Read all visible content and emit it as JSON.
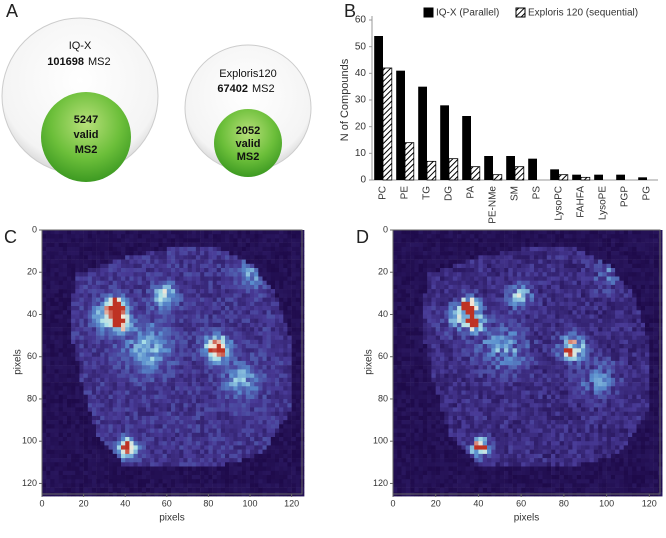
{
  "panel_labels": [
    "A",
    "B",
    "C",
    "D"
  ],
  "panel_a": {
    "circles": [
      {
        "instrument": "IQ-X",
        "total": 101698,
        "total_unit": "MS2",
        "valid": 5247,
        "valid_label": "valid",
        "valid_unit": "MS2"
      },
      {
        "instrument": "Exploris120",
        "total": 67402,
        "total_unit": "MS2",
        "valid": 2052,
        "valid_label": "valid",
        "valid_unit": "MS2"
      }
    ]
  },
  "chart_data": [
    {
      "type": "bar",
      "ylabel": "N of Compounds",
      "categories": [
        "PC",
        "PE",
        "TG",
        "DG",
        "PA",
        "PE-NMe",
        "SM",
        "PS",
        "LysoPC",
        "FAHFA",
        "LysoPE",
        "PGP",
        "PG"
      ],
      "series": [
        {
          "name": "IQ-X (Parallel)",
          "color": "#000000",
          "values": [
            54,
            41,
            35,
            28,
            24,
            9,
            9,
            8,
            4,
            2,
            2,
            2,
            1
          ]
        },
        {
          "name": "Exploris 120 (sequential)",
          "color": "#000000",
          "hatch": true,
          "values": [
            42,
            14,
            7,
            8,
            5,
            2,
            5,
            0,
            2,
            1,
            0,
            0,
            0
          ]
        }
      ],
      "ylim": [
        0,
        60
      ],
      "yticks": [
        0,
        10,
        20,
        30,
        40,
        50,
        60
      ]
    },
    {
      "type": "heatmap",
      "xlabel": "pixels",
      "ylabel": "pixels",
      "xlim": [
        0,
        125
      ],
      "ylim": [
        125,
        0
      ],
      "xticks": [
        0,
        20,
        40,
        60,
        80,
        100,
        120
      ],
      "yticks": [
        0,
        20,
        40,
        60,
        80,
        100,
        120
      ]
    },
    {
      "type": "heatmap",
      "xlabel": "pixels",
      "ylabel": "pixels",
      "xlim": [
        0,
        125
      ],
      "ylim": [
        125,
        0
      ],
      "xticks": [
        0,
        20,
        40,
        60,
        80,
        100,
        120
      ],
      "yticks": [
        0,
        20,
        40,
        60,
        80,
        100,
        120
      ]
    }
  ]
}
